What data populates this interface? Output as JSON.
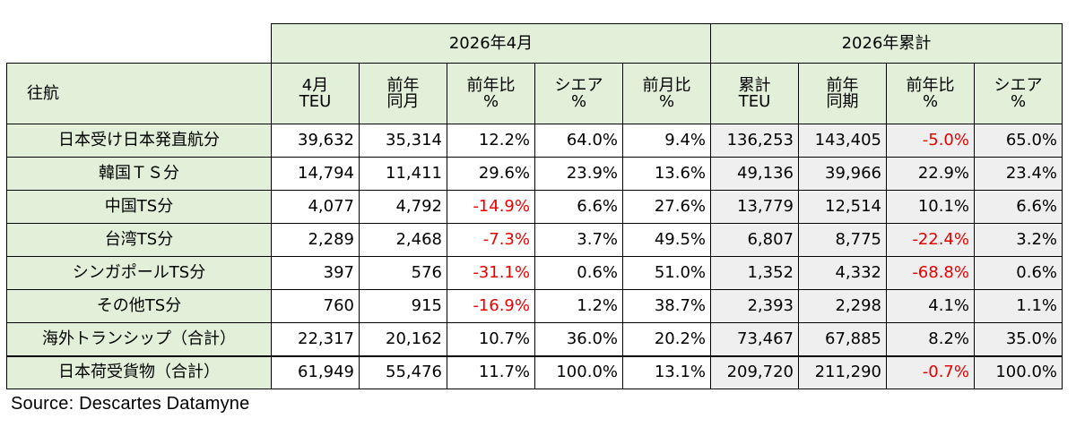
{
  "header": {
    "direction_label": "往航",
    "group_month": "2026年4月",
    "group_cumulative": "2026年累計",
    "columns": [
      {
        "line1": "4月",
        "line2": "TEU"
      },
      {
        "line1": "前年",
        "line2": "同月"
      },
      {
        "line1": "前年比",
        "line2": "%"
      },
      {
        "line1": "シエア",
        "line2": "%"
      },
      {
        "line1": "前月比",
        "line2": "%"
      },
      {
        "line1": "累計",
        "line2": "TEU"
      },
      {
        "line1": "前年",
        "line2": "同期"
      },
      {
        "line1": "前年比",
        "line2": "%"
      },
      {
        "line1": "シエア",
        "line2": "%"
      }
    ]
  },
  "rows": [
    {
      "label": "日本受け日本発直航分",
      "values": [
        "39,632",
        "35,314",
        "12.2%",
        "64.0%",
        "9.4%",
        "136,253",
        "143,405",
        "-5.0%",
        "65.0%"
      ]
    },
    {
      "label": "韓国ＴＳ分",
      "values": [
        "14,794",
        "11,411",
        "29.6%",
        "23.9%",
        "13.6%",
        "49,136",
        "39,966",
        "22.9%",
        "23.4%"
      ]
    },
    {
      "label": "中国TS分",
      "values": [
        "4,077",
        "4,792",
        "-14.9%",
        "6.6%",
        "27.6%",
        "13,779",
        "12,514",
        "10.1%",
        "6.6%"
      ]
    },
    {
      "label": "台湾TS分",
      "values": [
        "2,289",
        "2,468",
        "-7.3%",
        "3.7%",
        "49.5%",
        "6,807",
        "8,775",
        "-22.4%",
        "3.2%"
      ]
    },
    {
      "label": "シンガポールTS分",
      "values": [
        "397",
        "576",
        "-31.1%",
        "0.6%",
        "51.0%",
        "1,352",
        "4,332",
        "-68.8%",
        "0.6%"
      ]
    },
    {
      "label": "その他TS分",
      "values": [
        "760",
        "915",
        "-16.9%",
        "1.2%",
        "38.7%",
        "2,393",
        "2,298",
        "4.1%",
        "1.1%"
      ]
    },
    {
      "label": "海外トランシップ（合計）",
      "values": [
        "22,317",
        "20,162",
        "10.7%",
        "36.0%",
        "20.2%",
        "73,467",
        "67,885",
        "8.2%",
        "35.0%"
      ]
    },
    {
      "label": "日本荷受貨物（合計）",
      "values": [
        "61,949",
        "55,476",
        "11.7%",
        "100.0%",
        "13.1%",
        "209,720",
        "211,290",
        "-0.7%",
        "100.0%"
      ]
    }
  ],
  "source": "Source:  Descartes Datamyne",
  "colors": {
    "header_bg": "#e2efd9",
    "cumulative_bg": "#efefef",
    "negative": "#e60000"
  }
}
